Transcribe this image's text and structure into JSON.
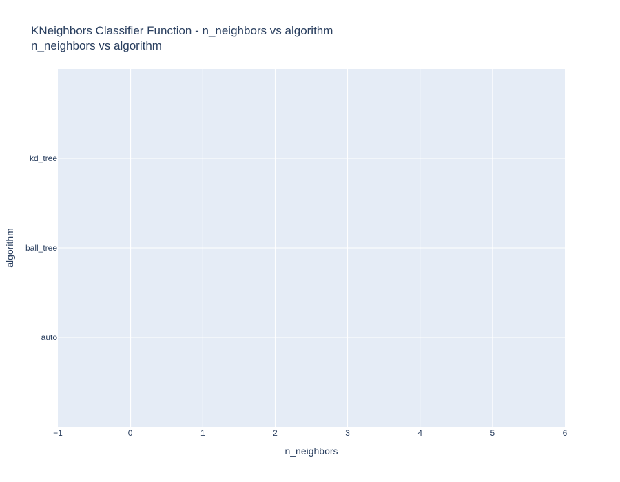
{
  "chart_data": {
    "type": "scatter",
    "title": "KNeighbors Classifier Function - n_neighbors vs algorithm",
    "subtitle": "n_neighbors vs algorithm",
    "xlabel": "n_neighbors",
    "ylabel": "algorithm",
    "xlim": [
      -1,
      6
    ],
    "x_ticks": [
      -1,
      0,
      1,
      2,
      3,
      4,
      5,
      6
    ],
    "x_tick_labels": [
      "−1",
      "0",
      "1",
      "2",
      "3",
      "4",
      "5",
      "6"
    ],
    "y_categories": [
      "auto",
      "ball_tree",
      "kd_tree"
    ],
    "ylim": [
      -1,
      3
    ],
    "series": [],
    "grid": true,
    "plot_background": "#E5ECF6",
    "grid_color": "#ffffff",
    "text_color": "#2a3f5f"
  }
}
